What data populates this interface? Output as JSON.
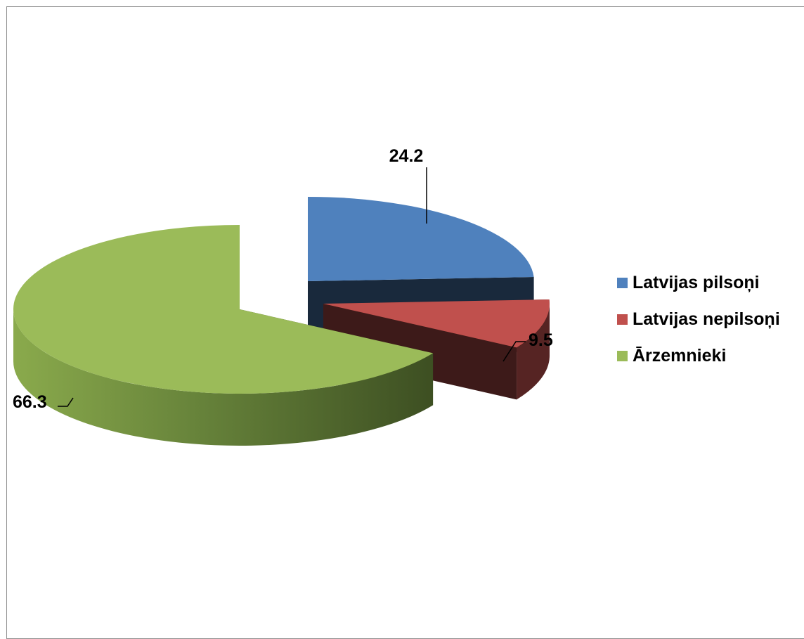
{
  "chart_data": {
    "type": "pie",
    "title": "",
    "categories": [
      "Latvijas pilsoņi",
      "Latvijas nepilsoņi",
      "Ārzemnieki"
    ],
    "values": [
      24.2,
      9.5,
      66.3
    ],
    "data_labels": [
      "24.2",
      "9.5",
      "66.3"
    ],
    "colors": [
      "#4f81bd",
      "#c0504d",
      "#9bbb59"
    ],
    "style": "3d-exploded",
    "legend_position": "right"
  },
  "legend": {
    "items": [
      {
        "label": "Latvijas pilsoņi",
        "color": "#4f81bd"
      },
      {
        "label": "Latvijas nepilsoņi",
        "color": "#c0504d"
      },
      {
        "label": "Ārzemnieki",
        "color": "#9bbb59"
      }
    ]
  }
}
